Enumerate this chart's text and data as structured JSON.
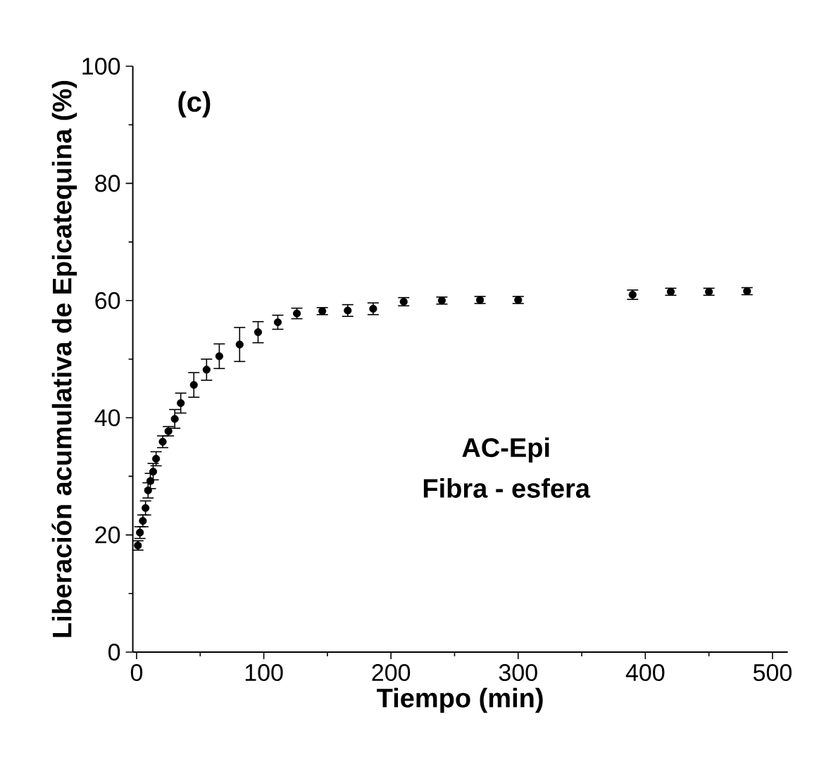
{
  "chart_data": {
    "type": "scatter",
    "xlabel": "Tiempo (min)",
    "ylabel": "Liberación acumulativa de Epicatequina (%)",
    "annotations": [
      "(c)",
      "AC-Epi",
      "Fibra - esfera"
    ],
    "x": [
      1,
      2.6,
      4.9,
      7,
      9,
      10.8,
      13,
      15.3,
      20.5,
      25,
      30,
      34.7,
      45,
      55,
      65,
      81,
      95.5,
      111,
      126,
      146,
      166,
      186,
      210,
      240,
      270,
      300,
      390,
      420,
      450,
      480
    ],
    "series": [
      {
        "color": "#000000",
        "values": [
          18.2,
          20.4,
          22.4,
          24.6,
          27.6,
          29.2,
          30.8,
          33,
          35.9,
          37.7,
          39.8,
          42.5,
          45.6,
          48.2,
          50.5,
          52.5,
          54.6,
          56.3,
          57.8,
          58.2,
          58.3,
          58.6,
          59.8,
          60,
          60.1,
          60.1,
          61,
          61.5,
          61.5,
          61.6
        ],
        "errors": [
          0.8,
          1,
          1,
          1.2,
          1.3,
          1.3,
          1.4,
          1.2,
          1,
          0.8,
          1.6,
          1.7,
          2.1,
          1.8,
          2.1,
          2.9,
          1.8,
          1.2,
          0.9,
          0.6,
          1,
          1,
          0.7,
          0.6,
          0.6,
          0.6,
          0.8,
          0.6,
          0.6,
          0.6
        ]
      }
    ],
    "marker": "circle",
    "grid": false,
    "xlim": [
      -3,
      512
    ],
    "ylim": [
      0,
      100
    ],
    "xticks": [
      0,
      100,
      200,
      300,
      400,
      500
    ],
    "yticks": [
      0,
      20,
      40,
      60,
      80,
      100
    ]
  }
}
